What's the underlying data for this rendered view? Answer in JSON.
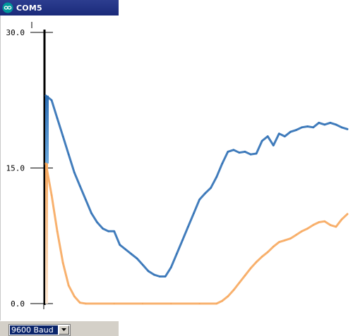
{
  "window": {
    "title": "COM5",
    "icon": "arduino-infinity-icon",
    "title_bar_color": "#1f2f82"
  },
  "statusbar": {
    "baud_value": "9600 Baud",
    "baud_dropdown_icon": "chevron-down-icon"
  },
  "chart_data": {
    "type": "line",
    "ylim": [
      0,
      30
    ],
    "y_ticks": [
      "30.0",
      "15.0",
      "0.0"
    ],
    "series": [
      {
        "color": "#2e6fb5",
        "points": [
          [
            0,
            23.0
          ],
          [
            8,
            22.5
          ],
          [
            16,
            20.5
          ],
          [
            24,
            18.5
          ],
          [
            32,
            16.5
          ],
          [
            40,
            14.5
          ],
          [
            48,
            13.0
          ],
          [
            56,
            11.5
          ],
          [
            64,
            10.0
          ],
          [
            72,
            9.0
          ],
          [
            80,
            8.3
          ],
          [
            88,
            8.0
          ],
          [
            96,
            8.0
          ],
          [
            104,
            6.5
          ],
          [
            112,
            6.0
          ],
          [
            120,
            5.5
          ],
          [
            128,
            5.0
          ],
          [
            136,
            4.3
          ],
          [
            144,
            3.6
          ],
          [
            152,
            3.2
          ],
          [
            160,
            3.0
          ],
          [
            168,
            3.0
          ],
          [
            176,
            4.0
          ],
          [
            184,
            5.5
          ],
          [
            192,
            7.0
          ],
          [
            200,
            8.5
          ],
          [
            208,
            10.0
          ],
          [
            216,
            11.5
          ],
          [
            224,
            12.2
          ],
          [
            232,
            12.8
          ],
          [
            240,
            14.0
          ],
          [
            248,
            15.5
          ],
          [
            256,
            16.8
          ],
          [
            264,
            17.0
          ],
          [
            272,
            16.7
          ],
          [
            280,
            16.8
          ],
          [
            288,
            16.5
          ],
          [
            296,
            16.6
          ],
          [
            304,
            18.0
          ],
          [
            312,
            18.5
          ],
          [
            320,
            17.5
          ],
          [
            328,
            18.8
          ],
          [
            336,
            18.5
          ],
          [
            344,
            19.0
          ],
          [
            352,
            19.2
          ],
          [
            360,
            19.5
          ],
          [
            368,
            19.6
          ],
          [
            376,
            19.5
          ],
          [
            384,
            20.0
          ],
          [
            392,
            19.8
          ],
          [
            400,
            20.0
          ],
          [
            408,
            19.8
          ],
          [
            416,
            19.5
          ],
          [
            424,
            19.3
          ]
        ]
      },
      {
        "color": "#f7a85e",
        "points": [
          [
            0,
            15.5
          ],
          [
            8,
            12.0
          ],
          [
            16,
            8.0
          ],
          [
            24,
            4.5
          ],
          [
            32,
            2.0
          ],
          [
            40,
            0.8
          ],
          [
            48,
            0.1
          ],
          [
            56,
            0.0
          ],
          [
            96,
            0.0
          ],
          [
            136,
            0.0
          ],
          [
            176,
            0.0
          ],
          [
            216,
            0.0
          ],
          [
            240,
            0.0
          ],
          [
            248,
            0.3
          ],
          [
            256,
            0.8
          ],
          [
            264,
            1.5
          ],
          [
            272,
            2.3
          ],
          [
            280,
            3.1
          ],
          [
            288,
            3.9
          ],
          [
            296,
            4.6
          ],
          [
            304,
            5.2
          ],
          [
            312,
            5.7
          ],
          [
            320,
            6.3
          ],
          [
            328,
            6.8
          ],
          [
            336,
            7.0
          ],
          [
            344,
            7.2
          ],
          [
            352,
            7.6
          ],
          [
            360,
            8.0
          ],
          [
            368,
            8.3
          ],
          [
            376,
            8.7
          ],
          [
            384,
            9.0
          ],
          [
            392,
            9.1
          ],
          [
            400,
            8.7
          ],
          [
            408,
            8.5
          ],
          [
            416,
            9.3
          ],
          [
            424,
            9.9
          ]
        ]
      }
    ]
  }
}
